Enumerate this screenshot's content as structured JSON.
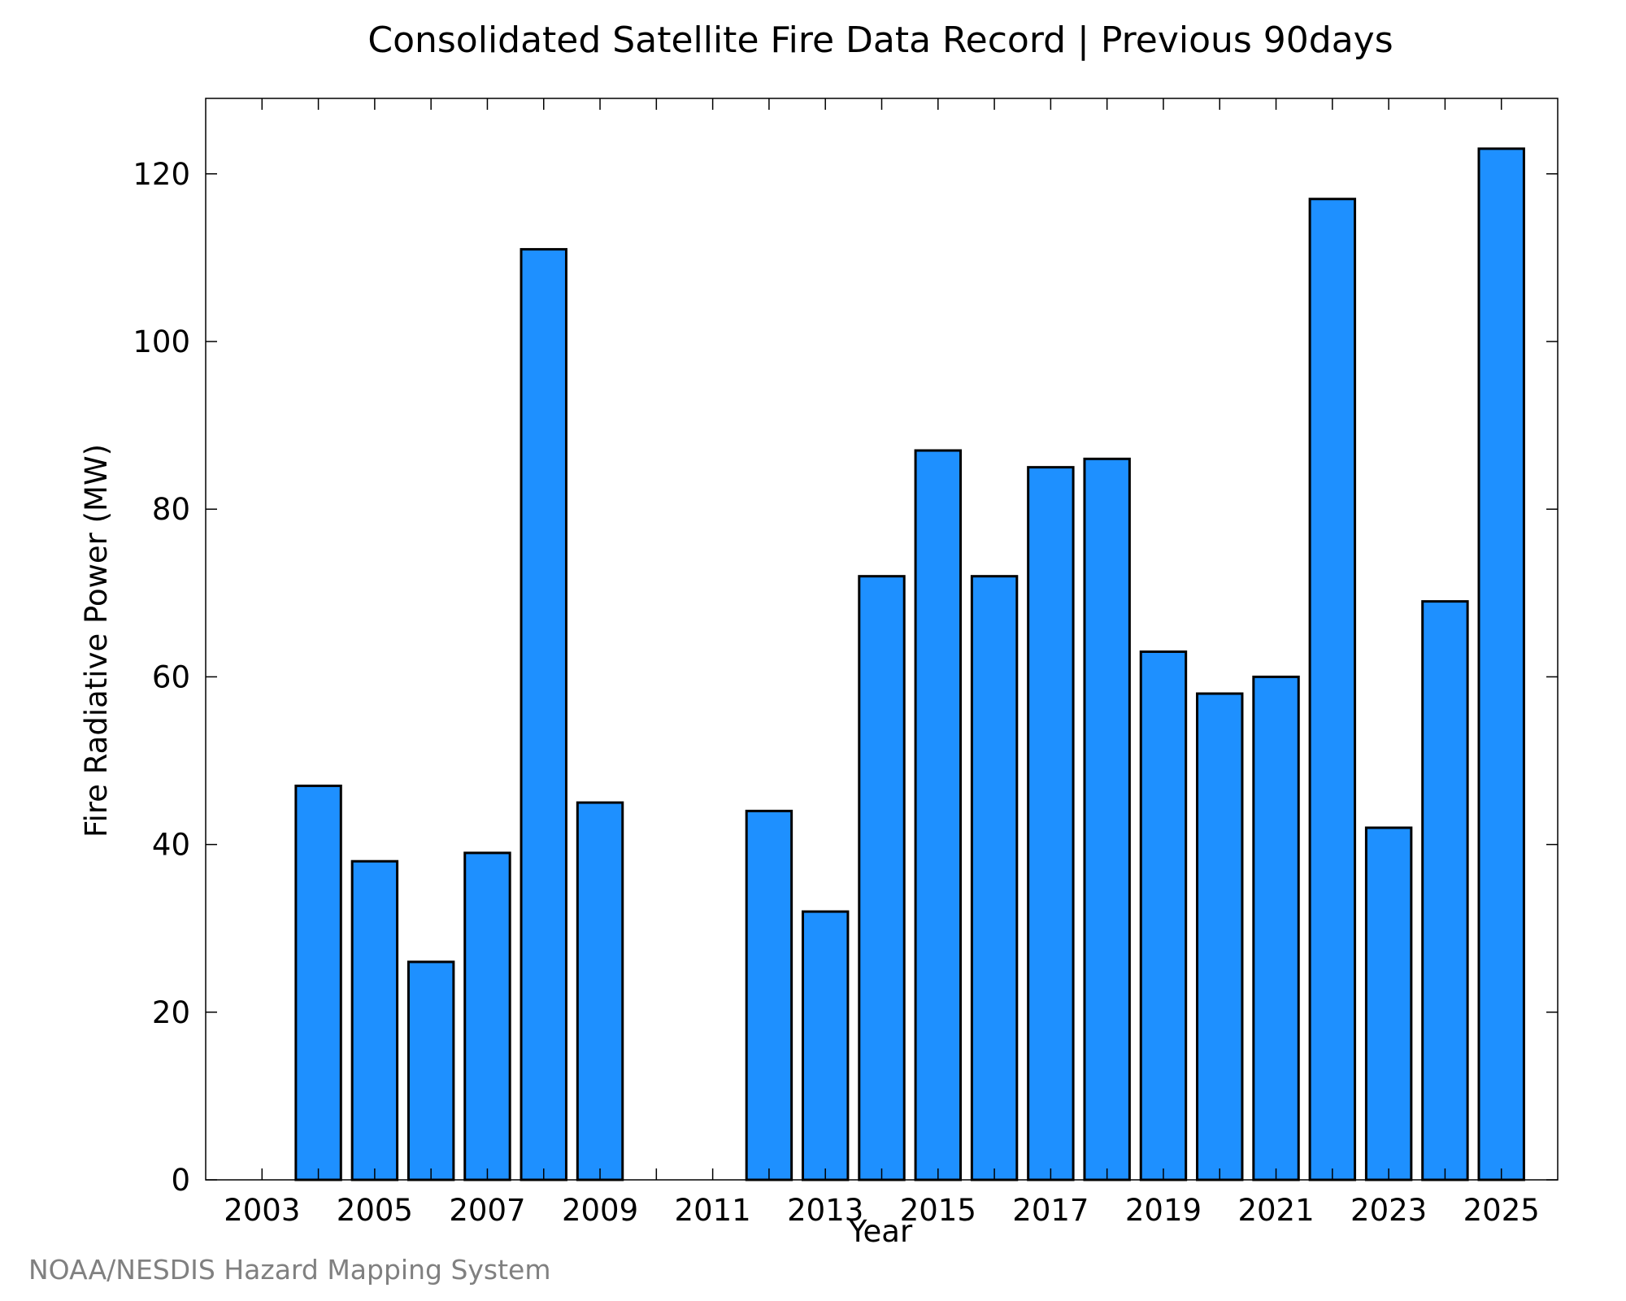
{
  "chart_data": {
    "type": "bar",
    "title": "Consolidated Satellite Fire Data Record | Previous 90days",
    "xlabel": "Year",
    "ylabel": "Fire Radiative Power (MW)",
    "categories": [
      2003,
      2004,
      2005,
      2006,
      2007,
      2008,
      2009,
      2010,
      2011,
      2012,
      2013,
      2014,
      2015,
      2016,
      2017,
      2018,
      2019,
      2020,
      2021,
      2022,
      2023,
      2024,
      2025
    ],
    "values": [
      0,
      47,
      38,
      26,
      39,
      111,
      45,
      0,
      0,
      44,
      32,
      72,
      87,
      72,
      85,
      86,
      63,
      58,
      60,
      117,
      42,
      69,
      123
    ],
    "x_tick_labels": [
      "2003",
      "2005",
      "2007",
      "2009",
      "2011",
      "2013",
      "2015",
      "2017",
      "2019",
      "2021",
      "2023",
      "2025"
    ],
    "y_ticks": [
      0,
      20,
      40,
      60,
      80,
      100,
      120
    ],
    "ylim": [
      0,
      129
    ],
    "xlim": [
      2002,
      2026
    ],
    "bar_color": "#1e90ff",
    "bar_edge_color": "#000000",
    "grid": false,
    "legend": "none"
  },
  "credit": "NOAA/NESDIS Hazard Mapping System"
}
